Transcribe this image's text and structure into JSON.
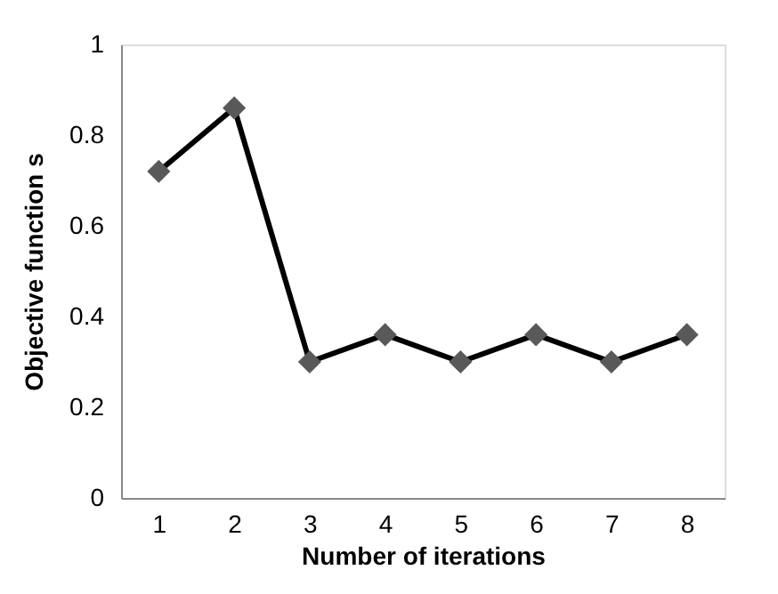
{
  "chart_data": {
    "type": "line",
    "xlabel": "Number of iterations",
    "ylabel": "Objective function s",
    "categories": [
      "1",
      "2",
      "3",
      "4",
      "5",
      "6",
      "7",
      "8"
    ],
    "series": [
      {
        "color": "#000000",
        "colors": [
          "#595959",
          "#595959",
          "#595959",
          "#595959",
          "#595959",
          "#595959",
          "#595959",
          "#595959"
        ],
        "values": [
          0.72,
          0.86,
          0.3,
          0.36,
          0.3,
          0.36,
          0.3,
          0.36
        ]
      }
    ],
    "ylim": [
      0,
      1
    ],
    "yticks": [
      0,
      0.2,
      0.4,
      0.6,
      0.8,
      1
    ],
    "grid": false,
    "marker": "diamond",
    "line_style": "solid"
  }
}
